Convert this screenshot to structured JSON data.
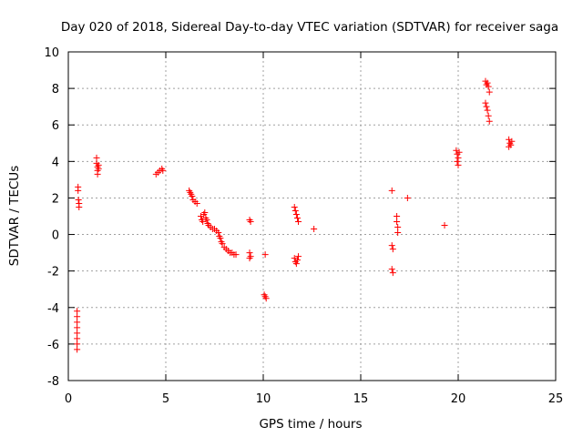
{
  "chart_data": {
    "type": "scatter",
    "title": "Day 020 of 2018, Sidereal Day-to-day VTEC variation (SDTVAR) for receiver saga",
    "xlabel": "GPS time / hours",
    "ylabel": "SDTVAR / TECUs",
    "xlim": [
      0,
      25
    ],
    "ylim": [
      -8,
      10
    ],
    "x_ticks": [
      0,
      5,
      10,
      15,
      20,
      25
    ],
    "y_ticks": [
      -8,
      -6,
      -4,
      -2,
      0,
      2,
      4,
      6,
      8,
      10
    ],
    "grid": true,
    "marker": "plus",
    "color": "#ff0000",
    "series": [
      {
        "name": "SDTVAR",
        "points": [
          [
            0.45,
            -4.2
          ],
          [
            0.45,
            -4.5
          ],
          [
            0.45,
            -4.8
          ],
          [
            0.45,
            -5.1
          ],
          [
            0.45,
            -5.4
          ],
          [
            0.45,
            -5.7
          ],
          [
            0.45,
            -6.0
          ],
          [
            0.45,
            -6.3
          ],
          [
            0.5,
            2.6
          ],
          [
            0.5,
            2.4
          ],
          [
            0.52,
            1.9
          ],
          [
            0.55,
            1.7
          ],
          [
            0.55,
            1.5
          ],
          [
            1.45,
            4.2
          ],
          [
            1.45,
            3.9
          ],
          [
            1.5,
            3.7
          ],
          [
            1.5,
            3.5
          ],
          [
            1.5,
            3.3
          ],
          [
            1.55,
            3.6
          ],
          [
            1.55,
            3.8
          ],
          [
            4.5,
            3.3
          ],
          [
            4.6,
            3.4
          ],
          [
            4.7,
            3.5
          ],
          [
            4.8,
            3.6
          ],
          [
            4.85,
            3.5
          ],
          [
            6.2,
            2.4
          ],
          [
            6.25,
            2.3
          ],
          [
            6.3,
            2.2
          ],
          [
            6.35,
            2.1
          ],
          [
            6.4,
            1.9
          ],
          [
            6.5,
            1.8
          ],
          [
            6.6,
            1.7
          ],
          [
            6.8,
            1.0
          ],
          [
            6.85,
            0.8
          ],
          [
            6.9,
            0.7
          ],
          [
            6.95,
            1.1
          ],
          [
            7.0,
            1.2
          ],
          [
            7.05,
            0.9
          ],
          [
            7.1,
            0.8
          ],
          [
            7.15,
            0.6
          ],
          [
            7.2,
            0.5
          ],
          [
            7.3,
            0.4
          ],
          [
            7.4,
            0.3
          ],
          [
            7.5,
            0.3
          ],
          [
            7.6,
            0.2
          ],
          [
            7.7,
            0.1
          ],
          [
            7.75,
            -0.1
          ],
          [
            7.8,
            -0.2
          ],
          [
            7.85,
            -0.4
          ],
          [
            7.9,
            -0.5
          ],
          [
            8.0,
            -0.7
          ],
          [
            8.1,
            -0.8
          ],
          [
            8.2,
            -0.9
          ],
          [
            8.3,
            -1.0
          ],
          [
            8.4,
            -1.0
          ],
          [
            8.5,
            -1.1
          ],
          [
            8.6,
            -1.1
          ],
          [
            9.3,
            0.8
          ],
          [
            9.35,
            0.7
          ],
          [
            9.3,
            -1.0
          ],
          [
            9.35,
            -1.2
          ],
          [
            9.3,
            -1.3
          ],
          [
            10.1,
            -1.1
          ],
          [
            10.05,
            -3.3
          ],
          [
            10.1,
            -3.4
          ],
          [
            10.15,
            -3.5
          ],
          [
            11.6,
            1.5
          ],
          [
            11.65,
            1.3
          ],
          [
            11.7,
            1.1
          ],
          [
            11.75,
            0.9
          ],
          [
            11.8,
            0.7
          ],
          [
            11.6,
            -1.3
          ],
          [
            11.65,
            -1.5
          ],
          [
            11.7,
            -1.6
          ],
          [
            11.75,
            -1.4
          ],
          [
            11.8,
            -1.2
          ],
          [
            12.6,
            0.3
          ],
          [
            16.6,
            2.4
          ],
          [
            16.6,
            -0.6
          ],
          [
            16.65,
            -0.8
          ],
          [
            16.6,
            -1.9
          ],
          [
            16.65,
            -2.1
          ],
          [
            16.85,
            1.0
          ],
          [
            16.85,
            0.7
          ],
          [
            16.9,
            0.4
          ],
          [
            16.9,
            0.1
          ],
          [
            17.4,
            2.0
          ],
          [
            19.3,
            0.5
          ],
          [
            19.9,
            4.6
          ],
          [
            19.95,
            4.4
          ],
          [
            20.0,
            4.2
          ],
          [
            19.95,
            4.0
          ],
          [
            20.0,
            3.8
          ],
          [
            20.05,
            4.5
          ],
          [
            21.4,
            8.4
          ],
          [
            21.45,
            8.2
          ],
          [
            21.5,
            8.3
          ],
          [
            21.55,
            8.1
          ],
          [
            21.6,
            7.8
          ],
          [
            21.4,
            7.2
          ],
          [
            21.45,
            7.0
          ],
          [
            21.5,
            6.8
          ],
          [
            21.55,
            6.5
          ],
          [
            21.6,
            6.2
          ],
          [
            22.6,
            5.2
          ],
          [
            22.65,
            5.0
          ],
          [
            22.7,
            4.9
          ],
          [
            22.75,
            5.1
          ],
          [
            22.6,
            4.8
          ]
        ]
      }
    ]
  }
}
